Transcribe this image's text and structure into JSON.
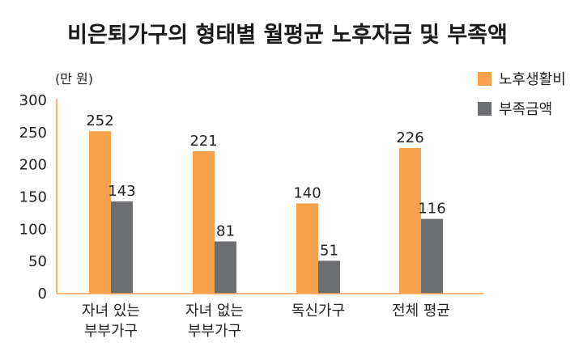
{
  "chart_data": {
    "type": "bar",
    "title": "비은퇴가구의 형태별 월평균 노후자금 및 부족액",
    "unit_label": "(만 원)",
    "categories": [
      [
        "자녀 있는",
        "부부가구"
      ],
      [
        "자녀 없는",
        "부부가구"
      ],
      [
        "독신가구"
      ],
      [
        "전체 평균"
      ]
    ],
    "series": [
      {
        "name": "노후생활비",
        "color": "#F7A24B",
        "values": [
          252,
          221,
          140,
          226
        ]
      },
      {
        "name": "부족금액",
        "color": "#6D6E71",
        "values": [
          143,
          81,
          51,
          116
        ]
      }
    ],
    "ylim": [
      0,
      300
    ],
    "yticks": [
      0,
      50,
      100,
      150,
      200,
      250,
      300
    ],
    "axis_color": "#F7A24B",
    "legend_position": "top-right",
    "grid": false
  }
}
